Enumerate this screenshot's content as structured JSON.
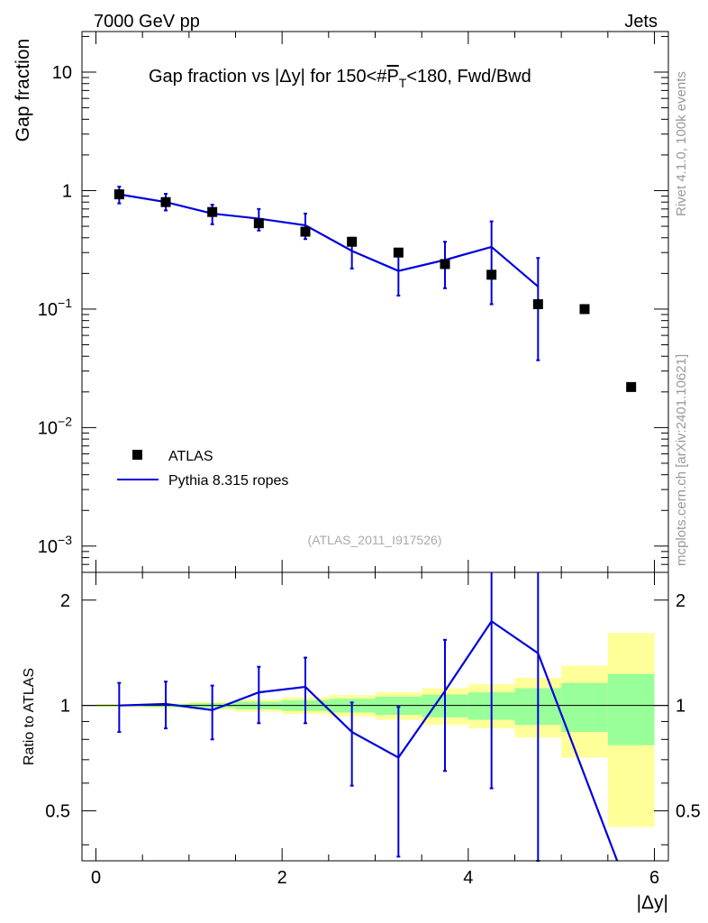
{
  "header": {
    "left": "7000 GeV pp",
    "right": "Jets"
  },
  "side_labels": {
    "rivet": "Rivet 4.1.0,  100k events",
    "mcplots": "mcplots.cern.ch [arXiv:2401.10621]"
  },
  "chart_data": [
    {
      "type": "scatter",
      "panel": "main",
      "title": "Gap fraction vs |Δy| for 150<#P̅T<180, Fwd/Bwd",
      "title_main": "Gap fraction vs |Δy| for 150<#",
      "title_p": "P",
      "title_sub": "T",
      "title_tail": "<180, Fwd/Bwd",
      "ylabel": "Gap fraction",
      "yscale": "log",
      "ylim": [
        0.0006,
        22
      ],
      "xlim": [
        -0.15,
        6.15
      ],
      "yticks": [
        {
          "v": 10,
          "base": "10",
          "exp": ""
        },
        {
          "v": 1,
          "base": "1",
          "exp": ""
        },
        {
          "v": 0.1,
          "base": "10",
          "exp": "−1"
        },
        {
          "v": 0.01,
          "base": "10",
          "exp": "−2"
        },
        {
          "v": 0.001,
          "base": "10",
          "exp": "−3"
        }
      ],
      "watermark": "(ATLAS_2011_I917526)",
      "legend": {
        "placement": "lower-left",
        "entries": [
          "ATLAS",
          "Pythia 8.315 ropes"
        ]
      },
      "series": [
        {
          "name": "ATLAS",
          "style": "markers",
          "color": "#000000",
          "x": [
            0.25,
            0.75,
            1.25,
            1.75,
            2.25,
            2.75,
            3.25,
            3.75,
            4.25,
            4.75,
            5.25,
            5.75
          ],
          "values": [
            0.93,
            0.8,
            0.66,
            0.53,
            0.45,
            0.37,
            0.3,
            0.24,
            0.195,
            0.11,
            0.1,
            0.022
          ]
        },
        {
          "name": "Pythia 8.315 ropes",
          "style": "line",
          "color": "#0000dd",
          "x": [
            0.25,
            0.75,
            1.25,
            1.75,
            2.25,
            2.75,
            3.25,
            3.75,
            4.25,
            4.75
          ],
          "values": [
            0.93,
            0.8,
            0.64,
            0.58,
            0.51,
            0.31,
            0.21,
            0.26,
            0.335,
            0.155
          ],
          "err_lo": [
            0.78,
            0.68,
            0.52,
            0.46,
            0.39,
            0.22,
            0.13,
            0.15,
            0.11,
            0.037
          ],
          "err_hi": [
            1.08,
            0.94,
            0.76,
            0.7,
            0.64,
            0.4,
            0.3,
            0.37,
            0.55,
            0.27
          ]
        }
      ]
    },
    {
      "type": "line",
      "panel": "ratio",
      "ylabel": "Ratio to ATLAS",
      "xlabel": "|Δy|",
      "yscale": "log",
      "ylim": [
        0.36,
        2.4
      ],
      "xlim": [
        -0.15,
        6.15
      ],
      "xticks": [
        "0",
        "2",
        "4",
        "6"
      ],
      "xtick_values": [
        0,
        2,
        4,
        6
      ],
      "yticks": [
        "0.5",
        "1",
        "2"
      ],
      "ytick_values": [
        0.5,
        1,
        2
      ],
      "reference_line": 1,
      "bands": {
        "x_edges": [
          0,
          0.5,
          1,
          1.5,
          2,
          2.5,
          3,
          3.5,
          4,
          4.5,
          5,
          5.5,
          6
        ],
        "yellow_lo": [
          0.99,
          0.985,
          0.975,
          0.96,
          0.945,
          0.93,
          0.91,
          0.88,
          0.86,
          0.81,
          0.71,
          0.45,
          0.3
        ],
        "yellow_hi": [
          1.01,
          1.015,
          1.025,
          1.04,
          1.055,
          1.07,
          1.09,
          1.12,
          1.15,
          1.2,
          1.3,
          1.61,
          2.4
        ],
        "green_lo": [
          0.995,
          0.99,
          0.985,
          0.975,
          0.965,
          0.955,
          0.94,
          0.925,
          0.91,
          0.88,
          0.84,
          0.77,
          0.3
        ],
        "green_hi": [
          1.005,
          1.01,
          1.015,
          1.025,
          1.035,
          1.045,
          1.06,
          1.075,
          1.09,
          1.12,
          1.16,
          1.23,
          2.2
        ]
      },
      "series": [
        {
          "name": "Pythia 8.315 ropes / ATLAS",
          "color": "#0000dd",
          "x": [
            0.25,
            0.75,
            1.25,
            1.75,
            2.25,
            2.75,
            3.25,
            3.75,
            4.25,
            4.75,
            5.6
          ],
          "values": [
            1.0,
            1.01,
            0.97,
            1.09,
            1.13,
            0.84,
            0.71,
            1.1,
            1.74,
            1.41,
            0.36
          ],
          "err_lo": [
            0.84,
            0.86,
            0.8,
            0.89,
            0.89,
            0.59,
            0.37,
            0.65,
            0.58,
            0.35,
            null
          ],
          "err_hi": [
            1.16,
            1.17,
            1.14,
            1.29,
            1.37,
            1.02,
            0.99,
            1.54,
            2.4,
            2.4,
            null
          ]
        }
      ]
    }
  ]
}
